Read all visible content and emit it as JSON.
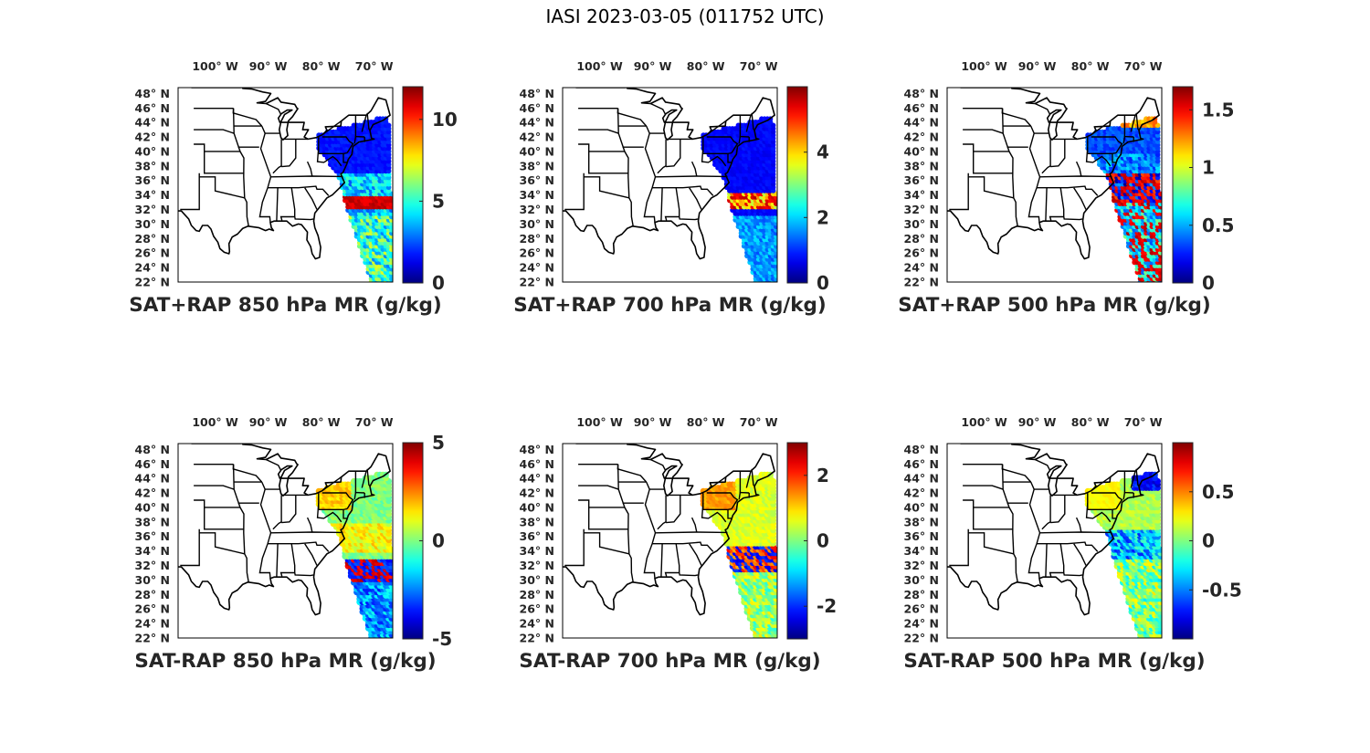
{
  "figure_title": "IASI 2023-03-05 (011752 UTC)",
  "lon_labels": [
    "100° W",
    "90° W",
    "80° W",
    "70° W"
  ],
  "lat_labels": [
    "48° N",
    "46° N",
    "44° N",
    "42° N",
    "40° N",
    "38° N",
    "36° N",
    "34° N",
    "32° N",
    "30° N",
    "28° N",
    "26° N",
    "24° N",
    "22° N"
  ],
  "colormap": "jet",
  "colors": {
    "map_outline": "#000000",
    "land": "#ffffff",
    "text": "#262626"
  },
  "panels": [
    {
      "title": "SAT+RAP 850 hPa MR (g/kg)",
      "colorbar": {
        "min": 0,
        "max": 12,
        "ticks": [
          "0",
          "5",
          "10"
        ]
      }
    },
    {
      "title": "SAT+RAP 700 hPa MR (g/kg)",
      "colorbar": {
        "min": 0,
        "max": 6,
        "ticks": [
          "0",
          "2",
          "4"
        ]
      }
    },
    {
      "title": "SAT+RAP 500 hPa MR (g/kg)",
      "colorbar": {
        "min": 0,
        "max": 1.7,
        "ticks": [
          "0",
          "0.5",
          "1",
          "1.5"
        ]
      }
    },
    {
      "title": "SAT-RAP 850 hPa MR (g/kg)",
      "colorbar": {
        "min": -5,
        "max": 5,
        "ticks": [
          "-5",
          "0",
          "5"
        ]
      }
    },
    {
      "title": "SAT-RAP 700 hPa MR (g/kg)",
      "colorbar": {
        "min": -3,
        "max": 3,
        "ticks": [
          "-2",
          "0",
          "2"
        ]
      }
    },
    {
      "title": "SAT-RAP 500 hPa MR (g/kg)",
      "colorbar": {
        "min": -1,
        "max": 1,
        "ticks": [
          "-0.5",
          "0",
          "0.5"
        ]
      }
    }
  ]
}
